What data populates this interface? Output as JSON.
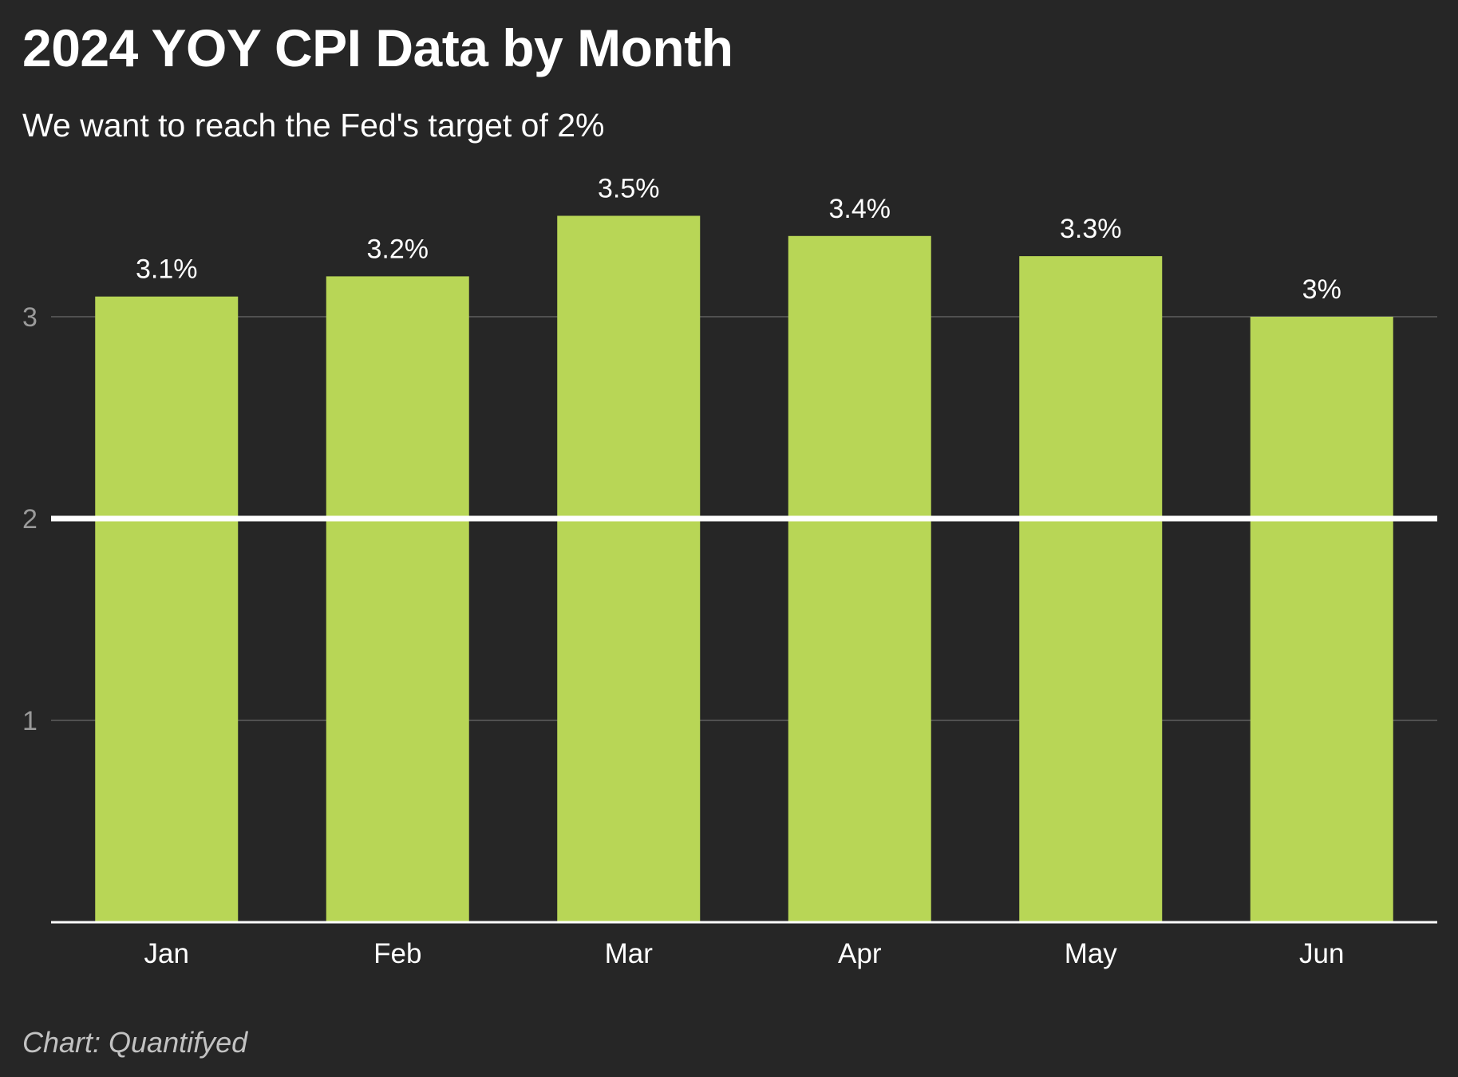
{
  "header": {
    "title": "2024 YOY CPI Data by Month",
    "subtitle": "We want to reach the Fed's target of 2%"
  },
  "footer": {
    "credit": "Chart: Quantifyed"
  },
  "colors": {
    "background": "#262626",
    "bar": "#b8d656",
    "gridline": "#505050",
    "target_line": "#ffffff",
    "axis_line": "#ffffff",
    "tick_text": "#9a9a9a",
    "label_text": "#ffffff"
  },
  "chart_data": {
    "type": "bar",
    "title": "2024 YOY CPI Data by Month",
    "subtitle": "We want to reach the Fed's target of 2%",
    "categories": [
      "Jan",
      "Feb",
      "Mar",
      "Apr",
      "May",
      "Jun"
    ],
    "values": [
      3.1,
      3.2,
      3.5,
      3.4,
      3.3,
      3.0
    ],
    "value_labels": [
      "3.1%",
      "3.2%",
      "3.5%",
      "3.4%",
      "3.3%",
      "3%"
    ],
    "ylim": [
      0,
      3.5
    ],
    "yticks": [
      1,
      2,
      3
    ],
    "reference_line": {
      "value": 2
    },
    "grid": true,
    "legend": "none"
  }
}
